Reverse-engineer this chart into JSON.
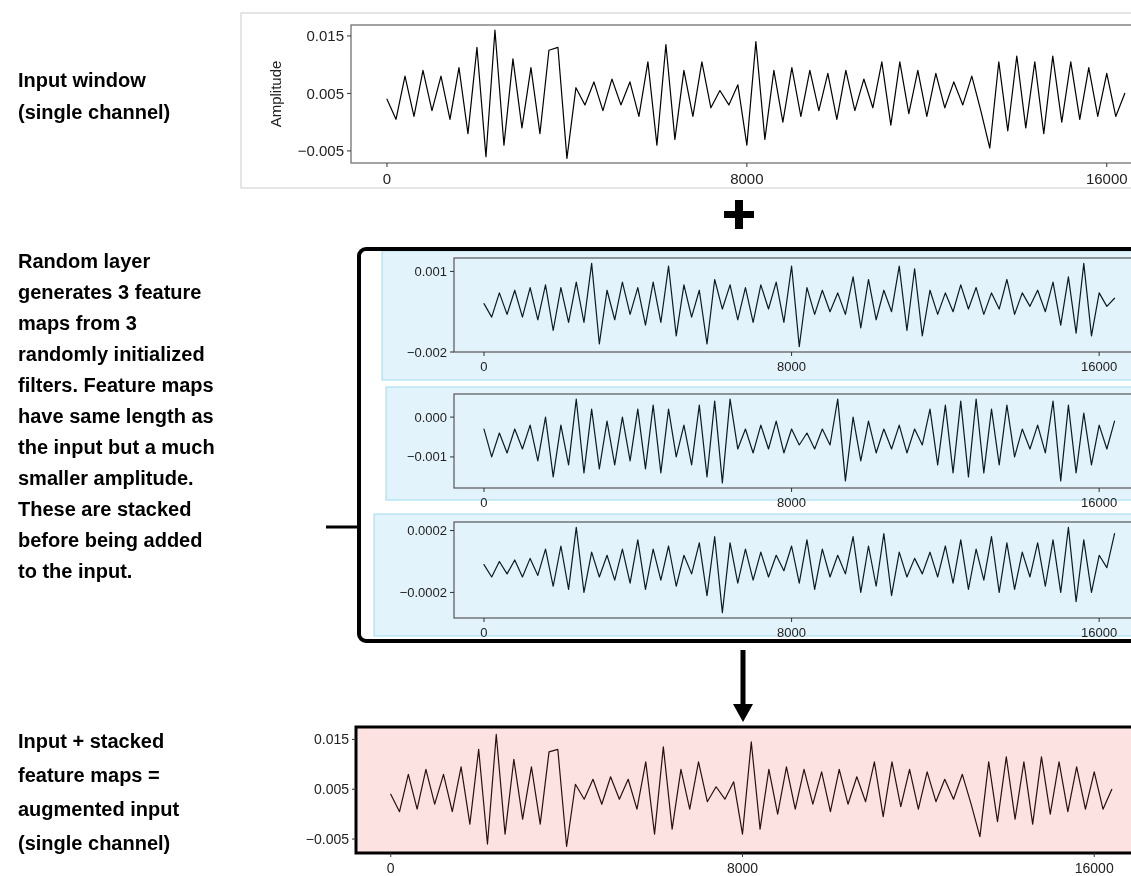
{
  "chart_data": [
    {
      "type": "line",
      "ylabel": "Amplitude",
      "annotations": [
        "Input window\n(single channel)"
      ],
      "xlim": [
        -800,
        16650
      ],
      "ylim": [
        -0.0071,
        0.0169
      ],
      "xticks": [
        0,
        8000,
        16000
      ],
      "yticks": [
        {
          "value": -0.005,
          "label": "−0.005"
        },
        0.005,
        0.015
      ],
      "x": [
        0,
        200,
        400,
        600,
        800,
        1000,
        1200,
        1400,
        1600,
        1800,
        2000,
        2200,
        2400,
        2600,
        2800,
        3000,
        3200,
        3400,
        3600,
        3800,
        4000,
        4200,
        4400,
        4600,
        4800,
        5000,
        5200,
        5400,
        5600,
        5800,
        6000,
        6200,
        6400,
        6600,
        6800,
        7000,
        7200,
        7400,
        7600,
        7800,
        8000,
        8200,
        8400,
        8600,
        8800,
        9000,
        9200,
        9400,
        9600,
        9800,
        10000,
        10200,
        10400,
        10600,
        10800,
        11000,
        11200,
        11400,
        11600,
        11800,
        12000,
        12200,
        12400,
        12600,
        12800,
        13000,
        13200,
        13400,
        13600,
        13800,
        14000,
        14200,
        14400,
        14600,
        14800,
        15000,
        15200,
        15400,
        15600,
        15800,
        16000,
        16200,
        16400
      ],
      "series": [
        {
          "color": "#000000",
          "values": [
            0.004,
            0.0005,
            0.008,
            0.001,
            0.009,
            0.002,
            0.008,
            0.0005,
            0.0095,
            -0.002,
            0.013,
            -0.006,
            0.016,
            -0.004,
            0.011,
            -0.001,
            0.0095,
            -0.002,
            0.0125,
            0.013,
            -0.0063,
            0.006,
            0.003,
            0.007,
            0.002,
            0.0075,
            0.003,
            0.007,
            0.001,
            0.0105,
            -0.004,
            0.0135,
            -0.003,
            0.009,
            0.001,
            0.0105,
            0.0025,
            0.0055,
            0.003,
            0.0065,
            -0.004,
            0.014,
            -0.003,
            0.009,
            0.0,
            0.0095,
            0.001,
            0.009,
            0.002,
            0.0085,
            0.0005,
            0.009,
            0.002,
            0.0075,
            0.0025,
            0.0105,
            -0.0005,
            0.0105,
            0.0015,
            0.009,
            0.001,
            0.0085,
            0.0025,
            0.007,
            0.003,
            0.008,
            0.002,
            -0.0045,
            0.0105,
            -0.0015,
            0.0115,
            -0.001,
            0.0105,
            -0.002,
            0.0115,
            0.0,
            0.0105,
            0.0005,
            0.0095,
            0.001,
            0.0085,
            0.001,
            0.005
          ]
        }
      ]
    },
    {
      "type": "line",
      "annotations": [
        "Random layer\ngenerates 3 feature\nmaps from 3\nrandomly initialized\nfilters. Feature maps\nhave same length as\nthe input but a much\nsmaller amplitude.\nThese are stacked\nbefore being added\nto the input."
      ],
      "xlim": [
        -780,
        16880
      ],
      "ylim": [
        -0.002,
        0.0015
      ],
      "xticks": [
        0,
        8000,
        16000
      ],
      "yticks": [
        {
          "value": -0.002,
          "label": "−0.002"
        },
        0.001
      ],
      "x": [
        0,
        200,
        400,
        600,
        800,
        1000,
        1200,
        1400,
        1600,
        1800,
        2000,
        2200,
        2400,
        2600,
        2800,
        3000,
        3200,
        3400,
        3600,
        3800,
        4000,
        4200,
        4400,
        4600,
        4800,
        5000,
        5200,
        5400,
        5600,
        5800,
        6000,
        6200,
        6400,
        6600,
        6800,
        7000,
        7200,
        7400,
        7600,
        7800,
        8000,
        8200,
        8400,
        8600,
        8800,
        9000,
        9200,
        9400,
        9600,
        9800,
        10000,
        10200,
        10400,
        10600,
        10800,
        11000,
        11200,
        11400,
        11600,
        11800,
        12000,
        12200,
        12400,
        12600,
        12800,
        13000,
        13200,
        13400,
        13600,
        13800,
        14000,
        14200,
        14400,
        14600,
        14800,
        15000,
        15200,
        15400,
        15600,
        15800,
        16000,
        16200,
        16400
      ],
      "series": [
        {
          "color": "#0d1b22",
          "values": [
            -0.0002,
            -0.0007,
            0.0002,
            -0.0006,
            0.0003,
            -0.0007,
            0.0004,
            -0.0008,
            0.0005,
            -0.0012,
            0.0004,
            -0.0009,
            0.0006,
            -0.0009,
            0.0013,
            -0.0017,
            0.0003,
            -0.0008,
            0.0006,
            -0.0006,
            0.0004,
            -0.001,
            0.0006,
            -0.0009,
            0.0012,
            -0.0014,
            0.0005,
            -0.0007,
            0.0003,
            -0.0017,
            0.0007,
            -0.0004,
            0.0005,
            -0.0008,
            0.0004,
            -0.0009,
            0.0005,
            -0.0004,
            0.0006,
            -0.0009,
            0.0012,
            -0.0018,
            0.0004,
            -0.0006,
            0.0003,
            -0.0005,
            0.0002,
            -0.0006,
            0.0008,
            -0.0011,
            0.0007,
            -0.0008,
            0.0003,
            -0.0005,
            0.0012,
            -0.0012,
            0.0011,
            -0.0014,
            0.0003,
            -0.0006,
            0.0002,
            -0.0005,
            0.0005,
            -0.0004,
            0.0004,
            -0.0006,
            0.0002,
            -0.0004,
            0.0007,
            -0.0006,
            0.0002,
            -0.0003,
            0.0003,
            -0.0005,
            0.0006,
            -0.001,
            0.0008,
            -0.0013,
            0.0013,
            -0.0014,
            0.0002,
            -0.0003,
            0.0
          ]
        }
      ]
    },
    {
      "type": "line",
      "xlim": [
        -780,
        16880
      ],
      "ylim": [
        -0.00178,
        0.00058
      ],
      "xticks": [
        0,
        8000,
        16000
      ],
      "yticks": [
        {
          "value": -0.001,
          "label": "−0.001"
        },
        {
          "value": 0,
          "label": "0.000"
        }
      ],
      "x": [
        0,
        200,
        400,
        600,
        800,
        1000,
        1200,
        1400,
        1600,
        1800,
        2000,
        2200,
        2400,
        2600,
        2800,
        3000,
        3200,
        3400,
        3600,
        3800,
        4000,
        4200,
        4400,
        4600,
        4800,
        5000,
        5200,
        5400,
        5600,
        5800,
        6000,
        6200,
        6400,
        6600,
        6800,
        7000,
        7200,
        7400,
        7600,
        7800,
        8000,
        8200,
        8400,
        8600,
        8800,
        9000,
        9200,
        9400,
        9600,
        9800,
        10000,
        10200,
        10400,
        10600,
        10800,
        11000,
        11200,
        11400,
        11600,
        11800,
        12000,
        12200,
        12400,
        12600,
        12800,
        13000,
        13200,
        13400,
        13600,
        13800,
        14000,
        14200,
        14400,
        14600,
        14800,
        15000,
        15200,
        15400,
        15600,
        15800,
        16000,
        16200,
        16400
      ],
      "series": [
        {
          "color": "#0d1b22",
          "values": [
            -0.0003,
            -0.001,
            -0.0004,
            -0.0009,
            -0.0003,
            -0.0008,
            -0.0002,
            -0.0011,
            0.0,
            -0.0015,
            -0.0002,
            -0.0012,
            0.00045,
            -0.0014,
            0.0002,
            -0.0013,
            -0.0001,
            -0.0012,
            0.0,
            -0.0011,
            0.0002,
            -0.0013,
            0.0003,
            -0.0014,
            0.0002,
            -0.001,
            -0.0002,
            -0.0012,
            0.0003,
            -0.0015,
            0.0004,
            -0.00165,
            0.00045,
            -0.0008,
            -0.0003,
            -0.0009,
            -0.0002,
            -0.0008,
            -0.0001,
            -0.0009,
            -0.0003,
            -0.0007,
            -0.0004,
            -0.0008,
            -0.0003,
            -0.0007,
            0.00045,
            -0.0016,
            0.0,
            -0.0011,
            -0.0001,
            -0.0009,
            -0.0003,
            -0.0008,
            -0.0002,
            -0.0009,
            -0.0003,
            -0.0007,
            0.0002,
            -0.0012,
            0.0003,
            -0.0014,
            0.0004,
            -0.0015,
            0.00045,
            -0.0014,
            0.0002,
            -0.0012,
            0.0003,
            -0.001,
            -0.0003,
            -0.0008,
            -0.0002,
            -0.0009,
            0.0004,
            -0.0016,
            0.0003,
            -0.0014,
            0.0001,
            -0.0012,
            -0.0002,
            -0.0008,
            -0.0001
          ]
        }
      ]
    },
    {
      "type": "line",
      "xlim": [
        -780,
        16880
      ],
      "ylim": [
        -0.000365,
        0.000255
      ],
      "xticks": [
        0,
        8000,
        16000
      ],
      "yticks": [
        {
          "value": -0.0002,
          "label": "−0.0002"
        },
        0.0002
      ],
      "x": [
        0,
        200,
        400,
        600,
        800,
        1000,
        1200,
        1400,
        1600,
        1800,
        2000,
        2200,
        2400,
        2600,
        2800,
        3000,
        3200,
        3400,
        3600,
        3800,
        4000,
        4200,
        4400,
        4600,
        4800,
        5000,
        5200,
        5400,
        5600,
        5800,
        6000,
        6200,
        6400,
        6600,
        6800,
        7000,
        7200,
        7400,
        7600,
        7800,
        8000,
        8200,
        8400,
        8600,
        8800,
        9000,
        9200,
        9400,
        9600,
        9800,
        10000,
        10200,
        10400,
        10600,
        10800,
        11000,
        11200,
        11400,
        11600,
        11800,
        12000,
        12200,
        12400,
        12600,
        12800,
        13000,
        13200,
        13400,
        13600,
        13800,
        14000,
        14200,
        14400,
        14600,
        14800,
        15000,
        15200,
        15400,
        15600,
        15800,
        16000,
        16200,
        16400
      ],
      "series": [
        {
          "color": "#0d1b22",
          "values": [
            -2e-05,
            -0.0001,
            0.0,
            -8e-05,
            1e-05,
            -0.0001,
            2e-05,
            -9e-05,
            8e-05,
            -0.00016,
            0.0001,
            -0.00018,
            0.00022,
            -0.0002,
            6e-05,
            -0.0001,
            4e-05,
            -0.00012,
            8e-05,
            -0.00014,
            0.00014,
            -0.00018,
            8e-05,
            -0.00012,
            0.0001,
            -0.00016,
            4e-05,
            -8e-05,
            0.00012,
            -0.00022,
            0.00016,
            -0.00033,
            0.00012,
            -0.00014,
            8e-05,
            -0.00012,
            6e-05,
            -0.0001,
            4e-05,
            -6e-05,
            0.0001,
            -0.00014,
            0.00014,
            -0.00018,
            8e-05,
            -0.0001,
            4e-05,
            -8e-05,
            0.00016,
            -0.0002,
            0.0001,
            -0.00016,
            0.00018,
            -0.00022,
            6e-05,
            -0.0001,
            2e-05,
            -8e-05,
            6e-05,
            -0.0001,
            0.0001,
            -0.00014,
            0.00014,
            -0.00018,
            8e-05,
            -0.00012,
            0.00016,
            -0.0002,
            0.00012,
            -0.00018,
            6e-05,
            -0.0001,
            0.00012,
            -0.00016,
            0.00014,
            -0.0002,
            0.00022,
            -0.00026,
            0.00014,
            -0.0002,
            4e-05,
            -4e-05,
            0.00018
          ]
        }
      ]
    },
    {
      "type": "line",
      "annotations": [
        "Input + stacked\nfeature maps =\naugmented input\n(single channel)"
      ],
      "xlim": [
        -790,
        16950
      ],
      "ylim": [
        -0.0078,
        0.0175
      ],
      "xticks": [
        0,
        8000,
        16000
      ],
      "yticks": [
        {
          "value": -0.005,
          "label": "−0.005"
        },
        0.005,
        0.015
      ],
      "x": [
        0,
        200,
        400,
        600,
        800,
        1000,
        1200,
        1400,
        1600,
        1800,
        2000,
        2200,
        2400,
        2600,
        2800,
        3000,
        3200,
        3400,
        3600,
        3800,
        4000,
        4200,
        4400,
        4600,
        4800,
        5000,
        5200,
        5400,
        5600,
        5800,
        6000,
        6200,
        6400,
        6600,
        6800,
        7000,
        7200,
        7400,
        7600,
        7800,
        8000,
        8200,
        8400,
        8600,
        8800,
        9000,
        9200,
        9400,
        9600,
        9800,
        10000,
        10200,
        10400,
        10600,
        10800,
        11000,
        11200,
        11400,
        11600,
        11800,
        12000,
        12200,
        12400,
        12600,
        12800,
        13000,
        13200,
        13400,
        13600,
        13800,
        14000,
        14200,
        14400,
        14600,
        14800,
        15000,
        15200,
        15400,
        15600,
        15800,
        16000,
        16200,
        16400
      ],
      "series": [
        {
          "color": "#2a1010",
          "values": [
            0.004,
            0.0005,
            0.008,
            0.001,
            0.009,
            0.002,
            0.008,
            0.0005,
            0.0095,
            -0.002,
            0.013,
            -0.006,
            0.016,
            -0.004,
            0.011,
            -0.001,
            0.0095,
            -0.002,
            0.0125,
            0.013,
            -0.0065,
            0.006,
            0.003,
            0.007,
            0.002,
            0.0075,
            0.003,
            0.007,
            0.001,
            0.0105,
            -0.004,
            0.0135,
            -0.003,
            0.009,
            0.001,
            0.0105,
            0.0025,
            0.0055,
            0.003,
            0.0065,
            -0.004,
            0.0145,
            -0.003,
            0.009,
            0.0,
            0.0095,
            0.001,
            0.009,
            0.002,
            0.0085,
            0.0005,
            0.009,
            0.002,
            0.0075,
            0.0025,
            0.0105,
            -0.0005,
            0.0105,
            0.0015,
            0.009,
            0.001,
            0.0085,
            0.0025,
            0.007,
            0.003,
            0.008,
            0.002,
            -0.0045,
            0.0105,
            -0.0015,
            0.0115,
            -0.001,
            0.0105,
            -0.002,
            0.0115,
            0.0,
            0.0105,
            0.0005,
            0.0095,
            0.001,
            0.0085,
            0.001,
            0.005
          ]
        }
      ]
    }
  ]
}
